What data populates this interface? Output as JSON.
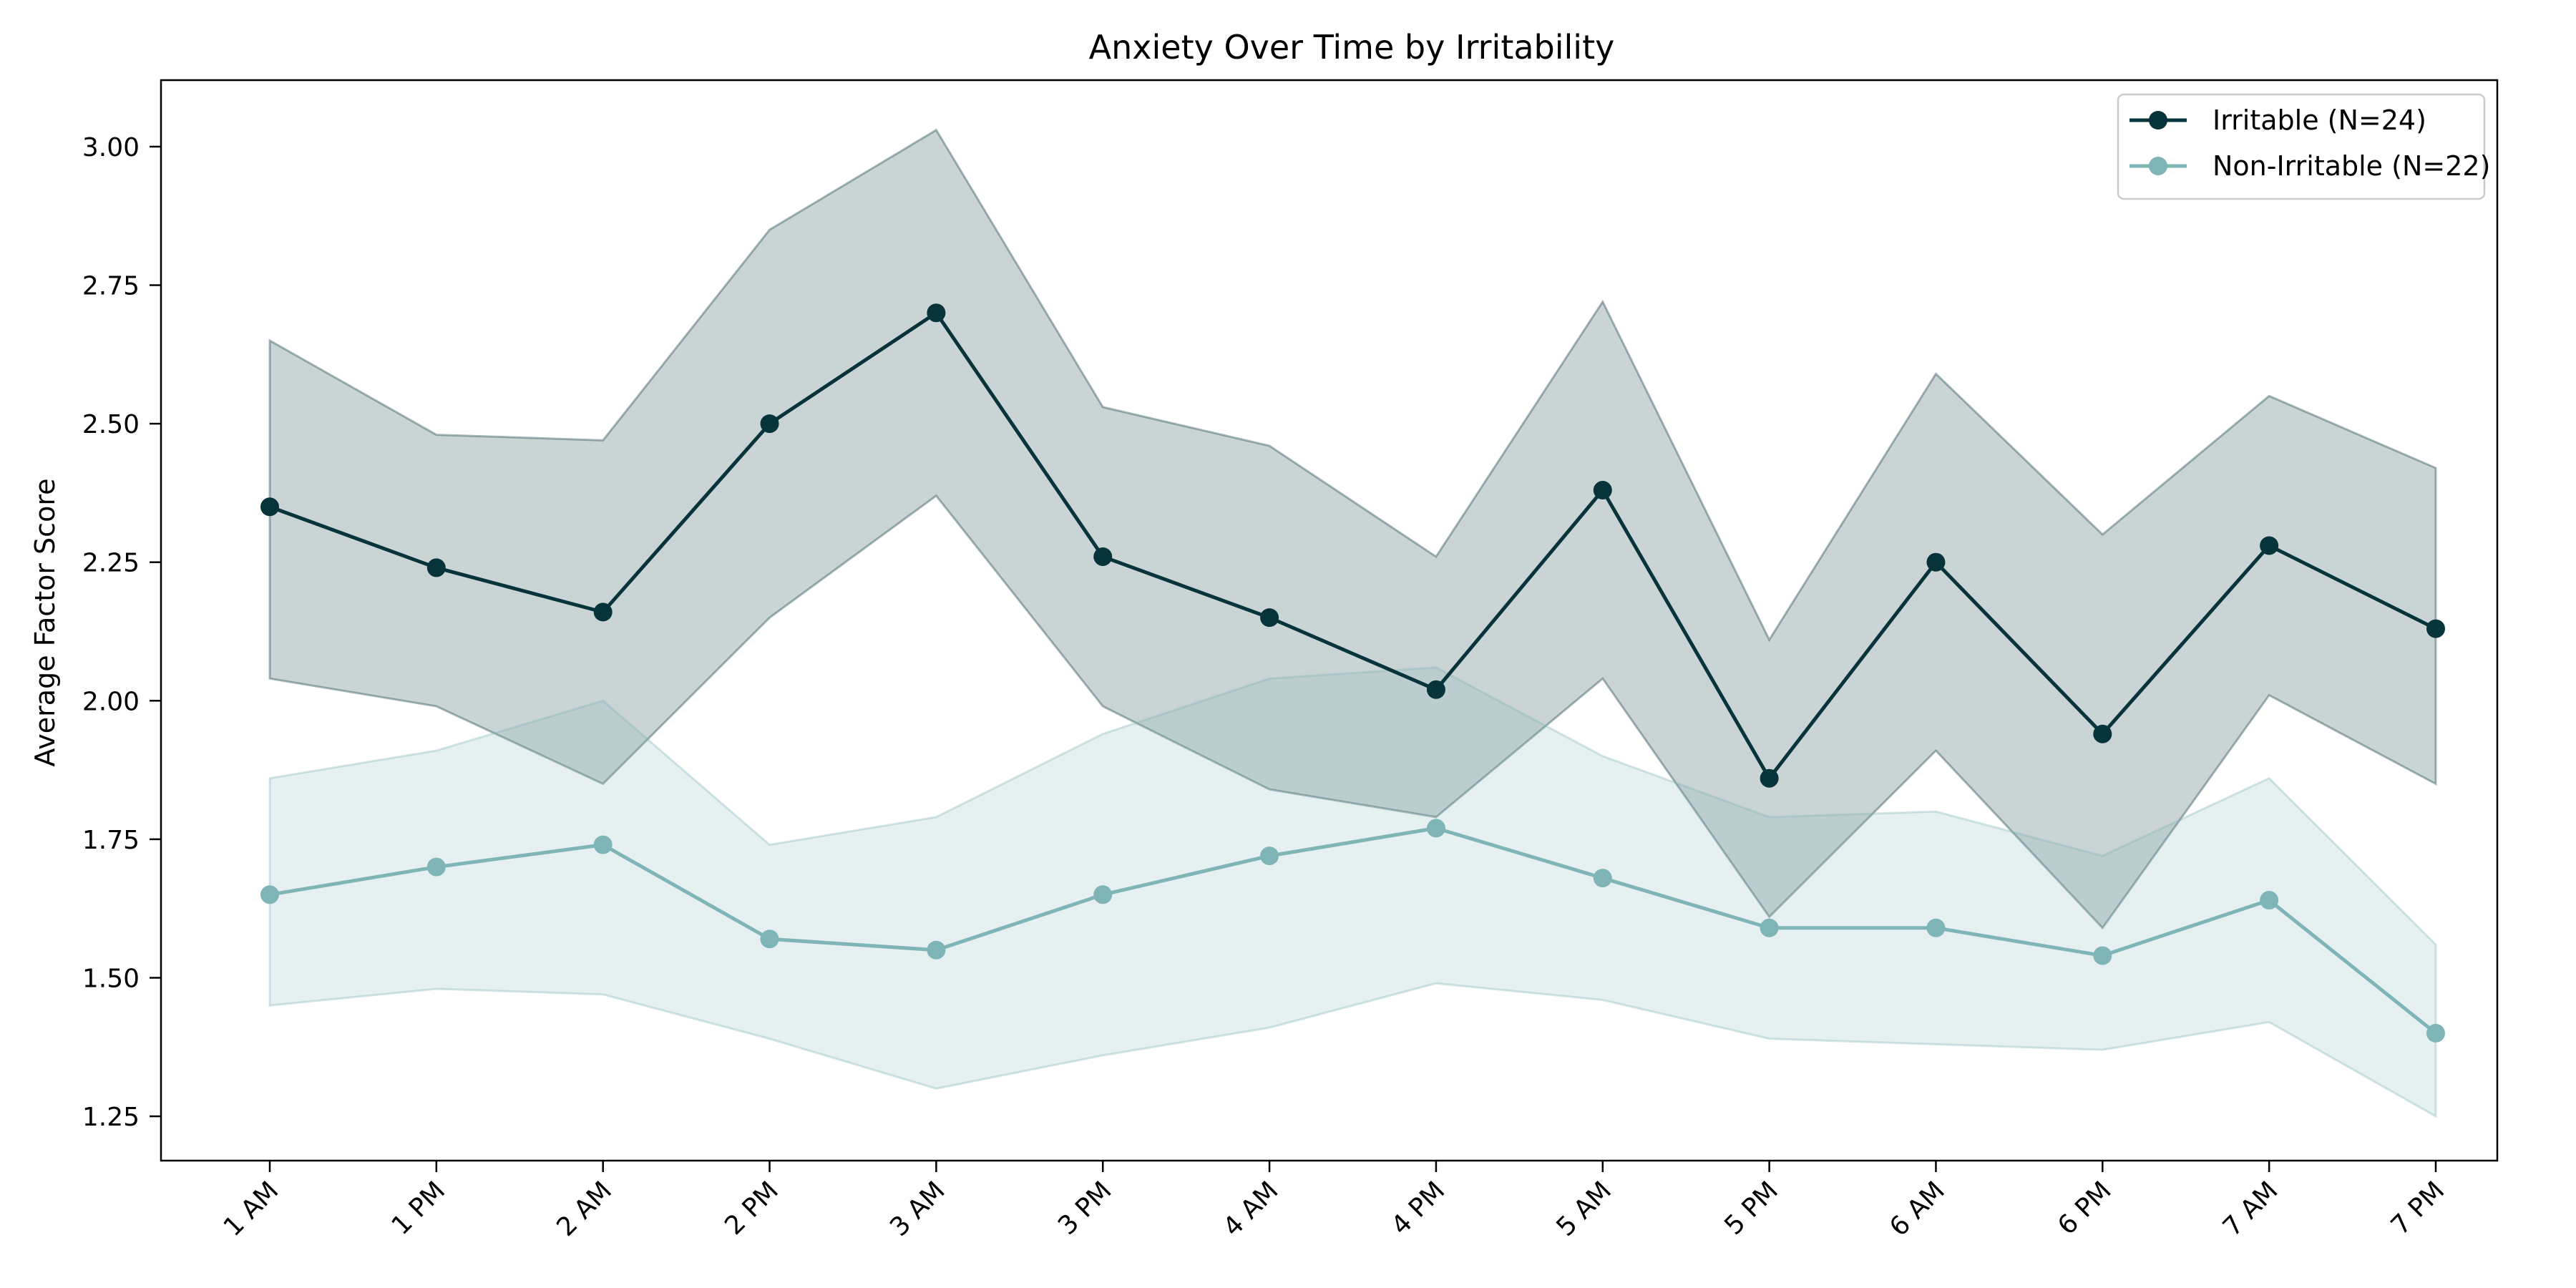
{
  "chart_data": {
    "type": "line",
    "title": "Anxiety Over Time by Irritability",
    "xlabel": "",
    "ylabel": "Average Factor Score",
    "categories": [
      "1 AM",
      "1 PM",
      "2 AM",
      "2 PM",
      "3 AM",
      "3 PM",
      "4 AM",
      "4 PM",
      "5 AM",
      "5 PM",
      "6 AM",
      "6 PM",
      "7 AM",
      "7 PM"
    ],
    "ylim": [
      1.17,
      3.12
    ],
    "yticks": [
      "1.25",
      "1.50",
      "1.75",
      "2.00",
      "2.25",
      "2.50",
      "2.75",
      "3.00"
    ],
    "grid": false,
    "legend_position": "top-right",
    "series": [
      {
        "name": "Irritable (N=24)",
        "color": "#06343a",
        "values": [
          2.35,
          2.24,
          2.16,
          2.5,
          2.7,
          2.26,
          2.15,
          2.02,
          2.38,
          1.86,
          2.25,
          1.94,
          2.28,
          2.13
        ],
        "lower": [
          2.04,
          1.99,
          1.85,
          2.15,
          2.37,
          1.99,
          1.84,
          1.79,
          2.04,
          1.61,
          1.91,
          1.59,
          2.01,
          1.85
        ],
        "upper": [
          2.65,
          2.48,
          2.47,
          2.85,
          3.03,
          2.53,
          2.46,
          2.26,
          2.72,
          2.11,
          2.59,
          2.3,
          2.55,
          2.42
        ]
      },
      {
        "name": "Non-Irritable (N=22)",
        "color": "#80b5b7",
        "values": [
          1.65,
          1.7,
          1.74,
          1.57,
          1.55,
          1.65,
          1.72,
          1.77,
          1.68,
          1.59,
          1.59,
          1.54,
          1.64,
          1.4
        ],
        "lower": [
          1.45,
          1.48,
          1.47,
          1.39,
          1.3,
          1.36,
          1.41,
          1.49,
          1.46,
          1.39,
          1.38,
          1.37,
          1.42,
          1.25
        ],
        "upper": [
          1.86,
          1.91,
          2.0,
          1.74,
          1.79,
          1.94,
          2.04,
          2.06,
          1.9,
          1.79,
          1.8,
          1.72,
          1.86,
          1.56
        ]
      }
    ]
  }
}
